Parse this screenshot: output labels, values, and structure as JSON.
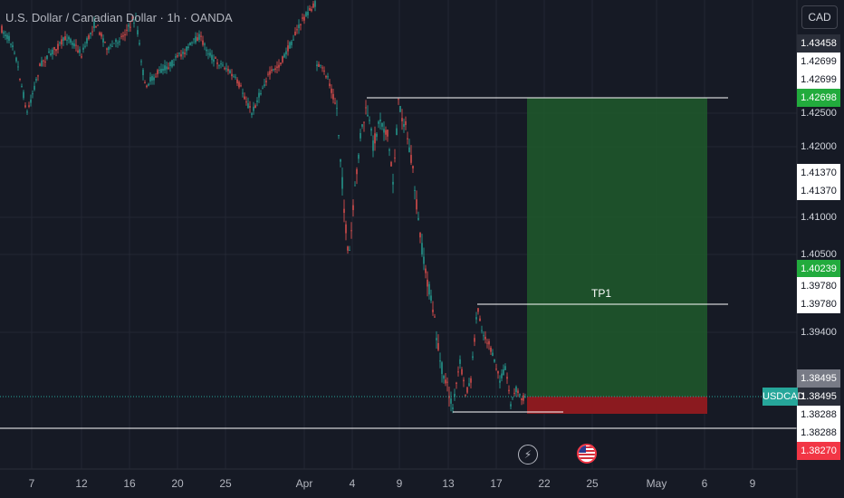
{
  "header": {
    "title": "U.S. Dollar / Canadian Dollar · 1h · OANDA",
    "currency_button": "CAD"
  },
  "price_axis": {
    "labels": [
      {
        "text": "1.43458",
        "style": "dark"
      },
      {
        "text": "1.42699",
        "style": "white"
      },
      {
        "text": "1.42699",
        "style": "white"
      },
      {
        "text": "1.42698",
        "style": "green"
      },
      {
        "text": "1.42500",
        "style": "plain"
      },
      {
        "text": "1.42000",
        "style": "plain"
      },
      {
        "text": "1.41370",
        "style": "white"
      },
      {
        "text": "1.41370",
        "style": "white"
      },
      {
        "text": "1.41000",
        "style": "plain"
      },
      {
        "text": "1.40500",
        "style": "plain"
      },
      {
        "text": "1.40239",
        "style": "green"
      },
      {
        "text": "1.39780",
        "style": "white"
      },
      {
        "text": "1.39780",
        "style": "white"
      },
      {
        "text": "1.39400",
        "style": "plain"
      },
      {
        "text": "1.38495",
        "style": "gray"
      },
      {
        "text": "1.38495",
        "style": "dark"
      },
      {
        "text": "1.38288",
        "style": "white"
      },
      {
        "text": "1.38288",
        "style": "white"
      },
      {
        "text": "1.38270",
        "style": "red"
      }
    ],
    "symbol_tag": "USDCAD"
  },
  "time_axis": {
    "labels": [
      "7",
      "12",
      "16",
      "20",
      "25",
      "Apr",
      "4",
      "9",
      "13",
      "17",
      "22",
      "25",
      "May",
      "6",
      "9"
    ]
  },
  "drawings": {
    "tp_label": "TP1"
  },
  "events": [
    {
      "icon": "lightning-icon"
    },
    {
      "icon": "us-flag-icon"
    }
  ],
  "colors": {
    "background": "#161a25",
    "candle_up": "#26a69a",
    "candle_down": "#ef5350",
    "profit_zone": "#1e5a2b",
    "loss_zone": "#8b1a1f",
    "symbol_tag": "#26a69a"
  }
}
